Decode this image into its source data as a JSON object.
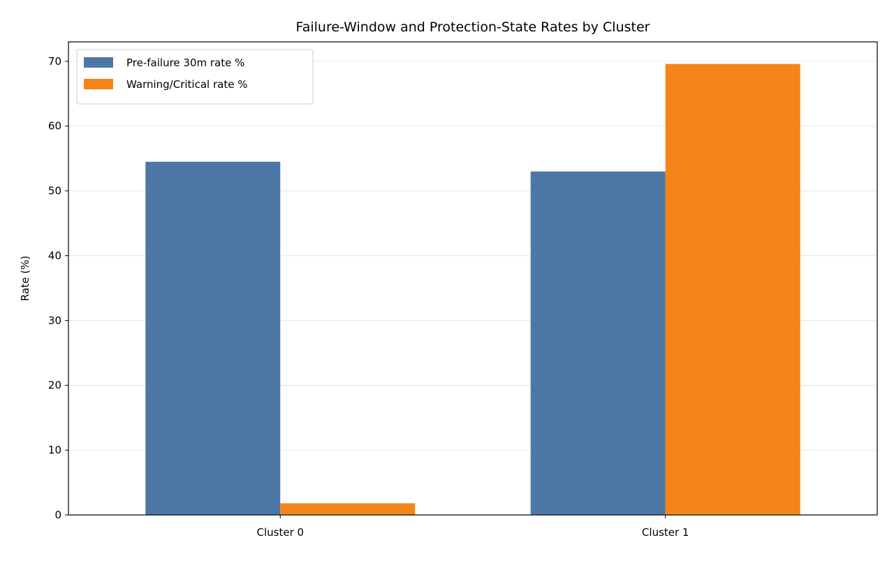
{
  "chart_data": {
    "type": "bar",
    "title": "Failure-Window and Protection-State Rates by Cluster",
    "xlabel": "",
    "ylabel": "Rate (%)",
    "categories": [
      "Cluster 0",
      "Cluster 1"
    ],
    "series": [
      {
        "name": "Pre-failure 30m rate %",
        "values": [
          54.5,
          53.0
        ],
        "color": "#4c78a8"
      },
      {
        "name": "Warning/Critical rate %",
        "values": [
          1.8,
          69.6
        ],
        "color": "#f58518"
      }
    ],
    "ylim": [
      0,
      73
    ],
    "yticks": [
      0,
      10,
      20,
      30,
      40,
      50,
      60,
      70
    ],
    "grid": "y",
    "legend_position": "top-left"
  }
}
